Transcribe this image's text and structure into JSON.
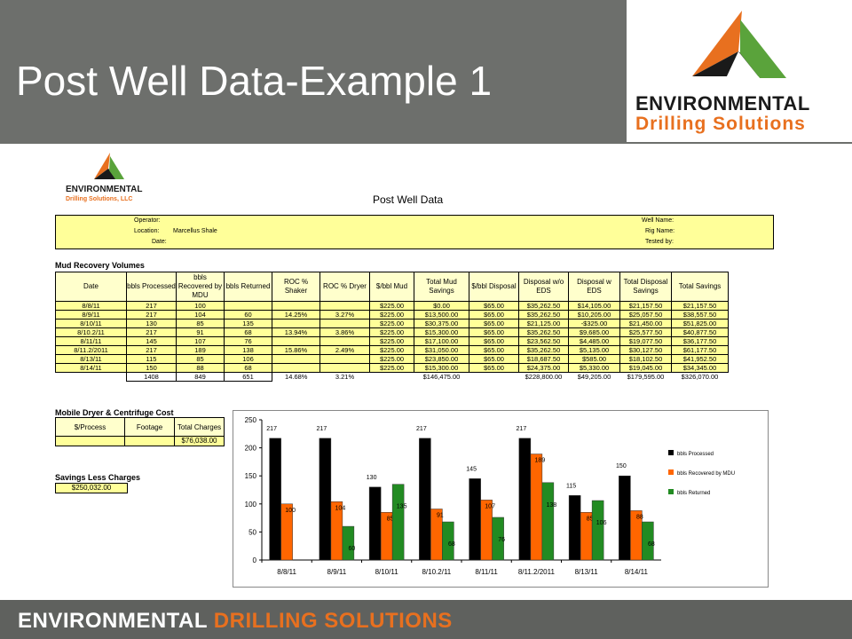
{
  "slide": {
    "title": "Post Well Data-Example 1",
    "logo": {
      "name": "ENVIRONMENTAL",
      "sub": "Drilling Solutions"
    },
    "footer": {
      "part1": "ENVIRONMENTAL",
      "part2": "DRILLING SOLUTIONS"
    },
    "colors": {
      "header_bg": "#6d6f6c",
      "accent_orange": "#e8701f",
      "accent_green": "#5aa33b",
      "sheet_yellow": "#ffff99"
    }
  },
  "sheet": {
    "logo": {
      "name": "ENVIRONMENTAL",
      "sub": "Drilling Solutions, LLC"
    },
    "title": "Post Well Data",
    "info": {
      "operator": "Operator:",
      "location": "Location:",
      "location_value": "Marcellus Shale",
      "date": "Date:",
      "well_name": "Well Name:",
      "rig_name": "Rig Name:",
      "tested_by": "Tested by:"
    },
    "mud_section": "Mud Recovery Volumes",
    "mud_headers": [
      "Date",
      "bbls Processed",
      "bbls Recovered by MDU",
      "bbls Returned",
      "ROC % Shaker",
      "ROC % Dryer",
      "$/bbl Mud",
      "Total Mud Savings",
      "$/bbl Disposal",
      "Disposal w/o EDS",
      "Disposal w EDS",
      "Total Disposal Savings",
      "Total Savings"
    ],
    "mud_rows": [
      [
        "8/8/11",
        "217",
        "100",
        "",
        "",
        "",
        "$225.00",
        "$0.00",
        "$65.00",
        "$35,262.50",
        "$14,105.00",
        "$21,157.50",
        "$21,157.50"
      ],
      [
        "8/9/11",
        "217",
        "104",
        "60",
        "14.25%",
        "3.27%",
        "$225.00",
        "$13,500.00",
        "$65.00",
        "$35,262.50",
        "$10,205.00",
        "$25,057.50",
        "$38,557.50"
      ],
      [
        "8/10/11",
        "130",
        "85",
        "135",
        "",
        "",
        "$225.00",
        "$30,375.00",
        "$65.00",
        "$21,125.00",
        "-$325.00",
        "$21,450.00",
        "$51,825.00"
      ],
      [
        "8/10.2/11",
        "217",
        "91",
        "68",
        "13.94%",
        "3.86%",
        "$225.00",
        "$15,300.00",
        "$65.00",
        "$35,262.50",
        "$9,685.00",
        "$25,577.50",
        "$40,877.50"
      ],
      [
        "8/11/11",
        "145",
        "107",
        "76",
        "",
        "",
        "$225.00",
        "$17,100.00",
        "$65.00",
        "$23,562.50",
        "$4,485.00",
        "$19,077.50",
        "$36,177.50"
      ],
      [
        "8/11.2/2011",
        "217",
        "189",
        "138",
        "15.86%",
        "2.49%",
        "$225.00",
        "$31,050.00",
        "$65.00",
        "$35,262.50",
        "$5,135.00",
        "$30,127.50",
        "$61,177.50"
      ],
      [
        "8/13/11",
        "115",
        "85",
        "106",
        "",
        "",
        "$225.00",
        "$23,850.00",
        "$65.00",
        "$18,687.50",
        "$585.00",
        "$18,102.50",
        "$41,952.50"
      ],
      [
        "8/14/11",
        "150",
        "88",
        "68",
        "",
        "",
        "$225.00",
        "$15,300.00",
        "$65.00",
        "$24,375.00",
        "$5,330.00",
        "$19,045.00",
        "$34,345.00"
      ]
    ],
    "mud_totals": [
      "",
      "1408",
      "849",
      "651",
      "14.68%",
      "3.21%",
      "",
      "$146,475.00",
      "",
      "$228,800.00",
      "$49,205.00",
      "$179,595.00",
      "$326,070.00"
    ],
    "mdc_section": "Mobile Dryer & Centrifuge Cost",
    "mdc_headers": [
      "$/Process",
      "Footage",
      "Total Charges"
    ],
    "mdc_row": [
      "",
      "",
      "$76,038.00"
    ],
    "savings_section": "Savings Less Charges",
    "savings_value": "$250,032.00"
  },
  "chart_data": {
    "type": "bar",
    "categories": [
      "8/8/11",
      "8/9/11",
      "8/10/11",
      "8/10.2/11",
      "8/11/11",
      "8/11.2/2011",
      "8/13/11",
      "8/14/11"
    ],
    "series": [
      {
        "name": "bbls Processed",
        "color": "#000000",
        "values": [
          217,
          217,
          130,
          217,
          145,
          217,
          115,
          150
        ]
      },
      {
        "name": "bbls Recovered by MDU",
        "color": "#ff6600",
        "values": [
          100,
          104,
          85,
          91,
          107,
          189,
          85,
          88
        ]
      },
      {
        "name": "bbls Returned",
        "color": "#228b22",
        "values": [
          null,
          60,
          135,
          68,
          76,
          138,
          106,
          68
        ]
      }
    ],
    "ylim": [
      0,
      250
    ],
    "yticks": [
      0,
      50,
      100,
      150,
      200,
      250
    ],
    "legend": "right",
    "grid": false,
    "data_labels": true
  }
}
